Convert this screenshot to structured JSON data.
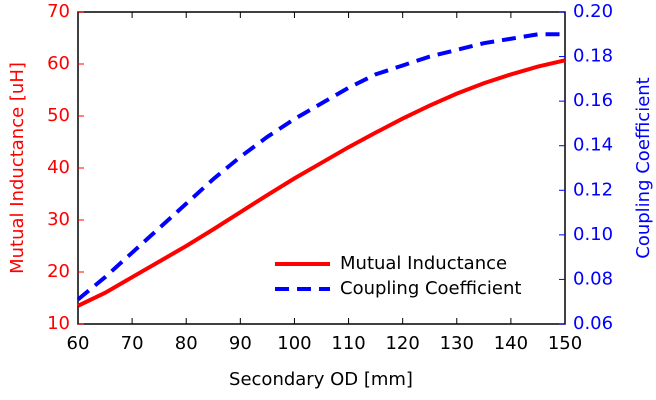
{
  "chart_data": {
    "type": "line",
    "x": [
      60,
      65,
      70,
      75,
      80,
      85,
      90,
      95,
      100,
      105,
      110,
      115,
      120,
      125,
      130,
      135,
      140,
      145,
      150
    ],
    "series": [
      {
        "name": "Mutual Inductance",
        "color": "#ff0000",
        "dash": "solid",
        "axis": "y",
        "values": [
          13.5,
          16,
          19,
          22,
          25,
          28.2,
          31.5,
          34.8,
          38,
          41,
          44,
          46.8,
          49.5,
          52,
          54.3,
          56.3,
          58,
          59.5,
          60.7
        ]
      },
      {
        "name": "Coupling Coefficient",
        "color": "#0000ff",
        "dash": "dashed",
        "axis": "y2",
        "values": [
          0.071,
          0.081,
          0.092,
          0.103,
          0.114,
          0.125,
          0.135,
          0.144,
          0.152,
          0.159,
          0.166,
          0.172,
          0.176,
          0.18,
          0.183,
          0.186,
          0.188,
          0.19,
          0.19
        ]
      }
    ],
    "xlabel": "Secondary OD [mm]",
    "ylabel": "Mutual Inductance [uH]",
    "y2label": "Coupling Coefficient",
    "ylabel_color": "#ff0000",
    "y2label_color": "#0000ff",
    "xlim": [
      60,
      150
    ],
    "xticks": [
      60,
      70,
      80,
      90,
      100,
      110,
      120,
      130,
      140,
      150
    ],
    "ylim": [
      10,
      70
    ],
    "yticks": [
      10,
      20,
      30,
      40,
      50,
      60,
      70
    ],
    "y2lim": [
      0.06,
      0.2
    ],
    "y2ticks": [
      0.06,
      0.08,
      {
        "value": 0.1,
        "label": "0.10"
      },
      0.12,
      0.14,
      0.16,
      0.18,
      {
        "value": 0.2,
        "label": "0.20"
      }
    ],
    "legend": "lower right",
    "grid": false
  }
}
